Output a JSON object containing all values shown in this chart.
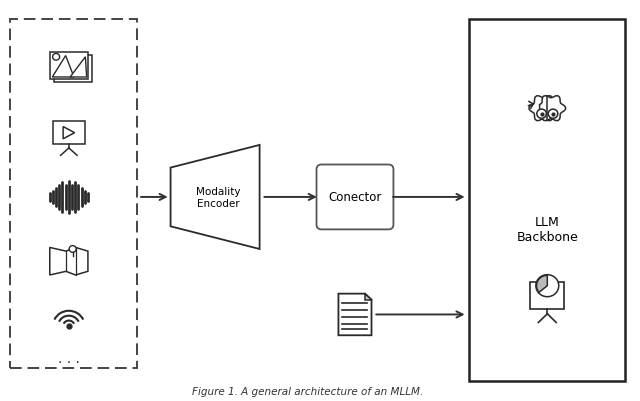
{
  "title": "Figure 1. A general architecture of an MLLM.",
  "bg_color": "#ffffff",
  "border_color": "#2a2a2a",
  "box_color": "#ffffff",
  "figsize": [
    6.4,
    4.02
  ],
  "dpi": 100,
  "modality_encoder_label": "Modality\nEncoder",
  "connector_label": "Conector",
  "llm_label": "LLM\nBackbone",
  "xlim": [
    0,
    10
  ],
  "ylim": [
    0,
    6.5
  ]
}
